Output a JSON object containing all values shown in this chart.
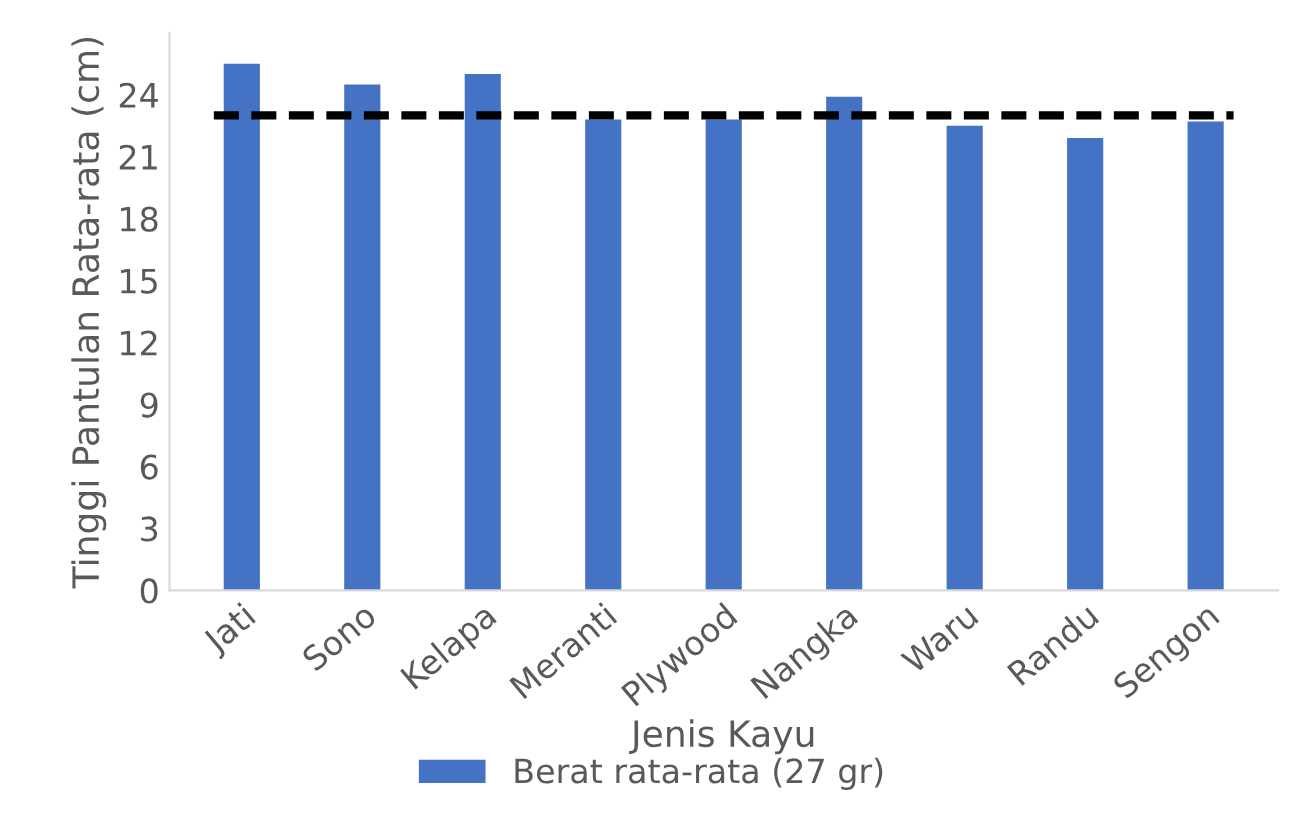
{
  "chart_data": {
    "type": "bar",
    "xlabel": "Jenis Kayu",
    "ylabel": "Tinggi Pantulan Rata-rata (cm)",
    "categories": [
      "Jati",
      "Sono",
      "Kelapa",
      "Meranti",
      "Plywood",
      "Nangka",
      "Waru",
      "Randu",
      "Sengon"
    ],
    "series": [
      {
        "name": "Berat rata-rata (27 gr)",
        "color": "#4472c4",
        "values": [
          25.5,
          24.5,
          25.0,
          22.8,
          22.8,
          23.9,
          22.5,
          21.9,
          22.7
        ]
      }
    ],
    "ref_lines": [
      {
        "axis": "y",
        "value": 23.0,
        "color": "#000000",
        "line_style": "dashed"
      }
    ],
    "ylim": [
      0,
      27
    ],
    "yticks": [
      0,
      3,
      6,
      9,
      12,
      15,
      18,
      21,
      24
    ],
    "grid": false,
    "legend": "bottom"
  }
}
